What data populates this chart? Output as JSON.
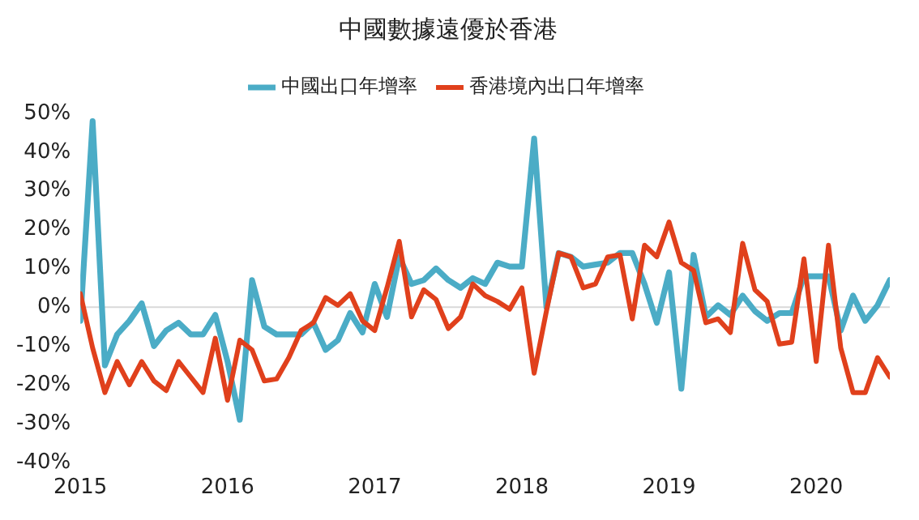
{
  "chart_data": {
    "type": "line",
    "title": "中國數據遠優於香港",
    "x": [
      "2015-01",
      "2015-02",
      "2015-03",
      "2015-04",
      "2015-05",
      "2015-06",
      "2015-07",
      "2015-08",
      "2015-09",
      "2015-10",
      "2015-11",
      "2015-12",
      "2016-01",
      "2016-02",
      "2016-03",
      "2016-04",
      "2016-05",
      "2016-06",
      "2016-07",
      "2016-08",
      "2016-09",
      "2016-10",
      "2016-11",
      "2016-12",
      "2017-01",
      "2017-02",
      "2017-03",
      "2017-04",
      "2017-05",
      "2017-06",
      "2017-07",
      "2017-08",
      "2017-09",
      "2017-10",
      "2017-11",
      "2017-12",
      "2018-01",
      "2018-02",
      "2018-03",
      "2018-04",
      "2018-05",
      "2018-06",
      "2018-07",
      "2018-08",
      "2018-09",
      "2018-10",
      "2018-11",
      "2018-12",
      "2019-01",
      "2019-02",
      "2019-03",
      "2019-04",
      "2019-05",
      "2019-06",
      "2019-07",
      "2019-08",
      "2019-09",
      "2019-10",
      "2019-11",
      "2019-12",
      "2020-01",
      "2020-02",
      "2020-03",
      "2020-04",
      "2020-05",
      "2020-06",
      "2020-07"
    ],
    "series": [
      {
        "name": "中國出口年增率",
        "color": "#4bacc6",
        "values": [
          -3.5,
          48,
          -15,
          -7,
          -3.5,
          1,
          -10,
          -6,
          -4,
          -7,
          -7,
          -2,
          -14,
          -29,
          7,
          -5,
          -7,
          -7,
          -7,
          -4,
          -11,
          -8.5,
          -1.5,
          -6.5,
          6,
          -2.5,
          13,
          6,
          7,
          10,
          7,
          5,
          7.5,
          6,
          11.5,
          10.5,
          10.5,
          43.5,
          0,
          14,
          13,
          10.5,
          11,
          11.5,
          14,
          14,
          6,
          -4,
          9,
          -21,
          13.5,
          -2.5,
          0.5,
          -2,
          3,
          -1,
          -3.5,
          -1.5,
          -1.5,
          8,
          8,
          8,
          -6,
          3,
          -3.5,
          0.5,
          7
        ]
      },
      {
        "name": "香港境內出口年增率",
        "color": "#e0401c",
        "values": [
          3.5,
          -10.5,
          -22,
          -14,
          -20,
          -14,
          -19,
          -21.5,
          -14,
          -18,
          -22,
          -8,
          -24,
          -8.5,
          -11,
          -19,
          -18.5,
          -13,
          -6,
          -4,
          2.5,
          0.5,
          3.5,
          -3.5,
          -6,
          5,
          17,
          -2.5,
          4.5,
          2,
          -5.5,
          -2.5,
          6,
          3,
          1.5,
          -0.5,
          5,
          -17,
          -1,
          14,
          13,
          5,
          6,
          13,
          13.5,
          -3,
          16,
          13,
          22,
          11.5,
          9.5,
          -4,
          -3,
          -6.5,
          16.5,
          4.5,
          1.5,
          -9.5,
          -9,
          12.5,
          -14,
          16,
          -10.5,
          -22,
          -22,
          -13,
          -18
        ]
      }
    ],
    "xlim": [
      "2015-01",
      "2020-07"
    ],
    "xticks": [
      "2015",
      "2016",
      "2017",
      "2018",
      "2019",
      "2020"
    ],
    "ylim": [
      -40,
      50
    ],
    "yticks": [
      {
        "value": -40,
        "label": "-40%"
      },
      {
        "value": -30,
        "label": "-30%"
      },
      {
        "value": -20,
        "label": "-20%"
      },
      {
        "value": -10,
        "label": "-10%"
      },
      {
        "value": 0,
        "label": "0%"
      },
      {
        "value": 10,
        "label": "10%"
      },
      {
        "value": 20,
        "label": "20%"
      },
      {
        "value": 30,
        "label": "30%"
      },
      {
        "value": 40,
        "label": "40%"
      },
      {
        "value": 50,
        "label": "50%"
      }
    ],
    "ref_lines": [
      {
        "axis": "y",
        "value": 0,
        "color": "#d9d9d9"
      }
    ],
    "grid": false,
    "legend": "top",
    "marker": "none",
    "line_style": "solid"
  }
}
